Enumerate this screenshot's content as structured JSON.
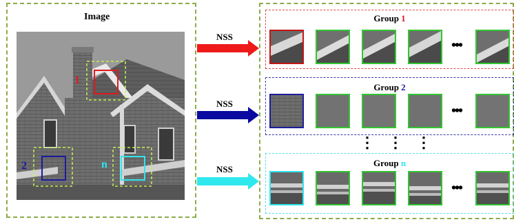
{
  "left_panel": {
    "title": "Image"
  },
  "markers": [
    {
      "label": "1",
      "color": "#e0191e"
    },
    {
      "label": "2",
      "color": "#1b1b9c"
    },
    {
      "label": "n",
      "color": "#2ee6ee"
    }
  ],
  "arrows": [
    {
      "label": "NSS",
      "color": "#ee1a1a"
    },
    {
      "label": "NSS",
      "color": "#0a0aa0"
    },
    {
      "label": "NSS",
      "color": "#2ee8ee"
    }
  ],
  "groups": [
    {
      "prefix": "Group ",
      "index": "1",
      "color": "#e0191e",
      "border": "#e04a4a",
      "ellipsis": "•••"
    },
    {
      "prefix": "Group ",
      "index": "2",
      "color": "#1b1b9c",
      "border": "#3a3aa8",
      "ellipsis": "•••"
    },
    {
      "prefix": "Group ",
      "index": "n",
      "color": "#2ee6ee",
      "border": "#5ae0e6",
      "ellipsis": "•••"
    }
  ],
  "vertical_dots": "⋮",
  "patch_border": "#31c631",
  "frame_color": "#8cab4a"
}
